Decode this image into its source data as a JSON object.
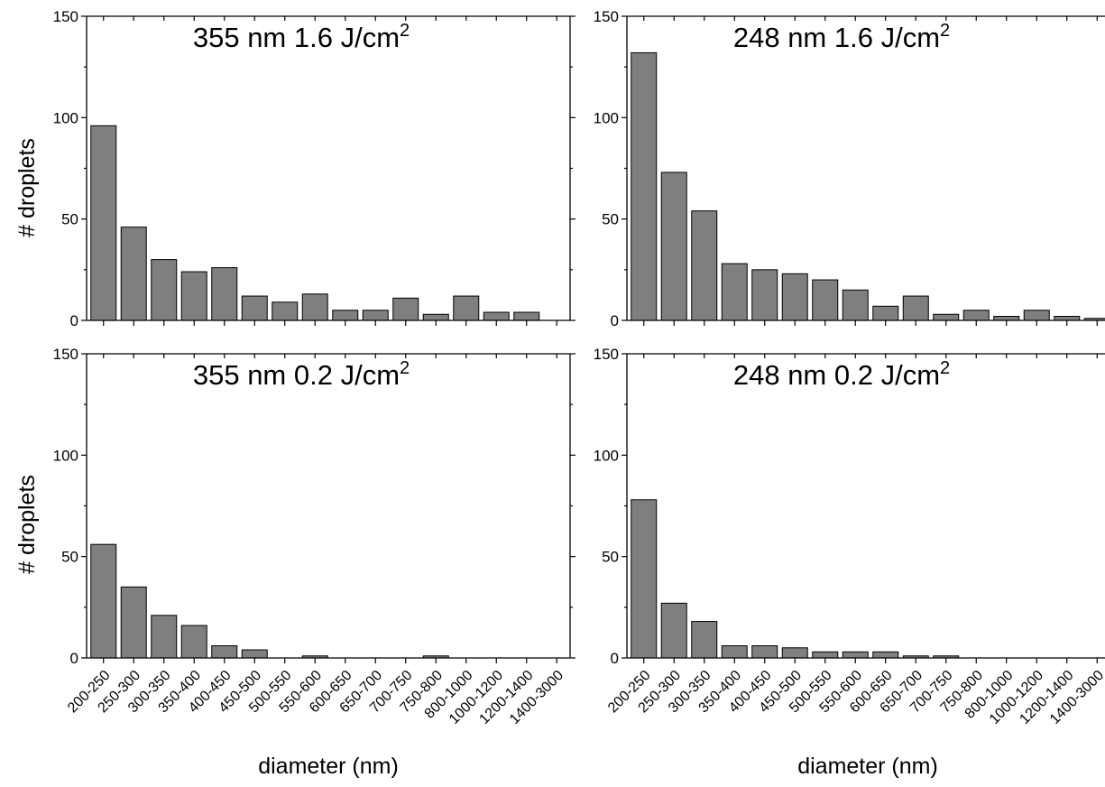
{
  "figure": {
    "ylabel": "# droplets",
    "xlabel": "diameter (nm)"
  },
  "chart_data": [
    {
      "type": "bar",
      "title_main": "355 nm 1.6 J/cm",
      "title_sup": "2",
      "categories": [
        "200-250",
        "250-300",
        "300-350",
        "350-400",
        "400-450",
        "450-500",
        "500-550",
        "550-600",
        "600-650",
        "650-700",
        "700-750",
        "750-800",
        "800-1000",
        "1000-1200",
        "1200-1400",
        "1400-3000"
      ],
      "values": [
        96,
        46,
        30,
        24,
        26,
        12,
        9,
        13,
        5,
        5,
        11,
        3,
        12,
        4,
        4,
        0
      ],
      "ylim": [
        0,
        150
      ],
      "yticks": [
        0,
        50,
        100,
        150
      ],
      "ylabel": "# droplets",
      "xlabel": "",
      "grid": false,
      "color": "#7f7f7f"
    },
    {
      "type": "bar",
      "title_main": "248 nm 1.6 J/cm",
      "title_sup": "2",
      "categories": [
        "200-250",
        "250-300",
        "300-350",
        "350-400",
        "400-450",
        "450-500",
        "500-550",
        "550-600",
        "600-650",
        "650-700",
        "700-750",
        "750-800",
        "800-1000",
        "1000-1200",
        "1200-1400",
        "1400-3000"
      ],
      "values": [
        132,
        73,
        54,
        28,
        25,
        23,
        20,
        15,
        7,
        12,
        3,
        5,
        2,
        5,
        2,
        1
      ],
      "ylim": [
        0,
        150
      ],
      "yticks": [
        0,
        50,
        100,
        150
      ],
      "ylabel": "",
      "xlabel": "",
      "grid": false,
      "color": "#7f7f7f"
    },
    {
      "type": "bar",
      "title_main": "355 nm 0.2 J/cm",
      "title_sup": "2",
      "categories": [
        "200-250",
        "250-300",
        "300-350",
        "350-400",
        "400-450",
        "450-500",
        "500-550",
        "550-600",
        "600-650",
        "650-700",
        "700-750",
        "750-800",
        "800-1000",
        "1000-1200",
        "1200-1400",
        "1400-3000"
      ],
      "values": [
        56,
        35,
        21,
        16,
        6,
        4,
        0,
        1,
        0,
        0,
        0,
        1,
        0,
        0,
        0,
        0
      ],
      "ylim": [
        0,
        150
      ],
      "yticks": [
        0,
        50,
        100,
        150
      ],
      "ylabel": "# droplets",
      "xlabel": "diameter (nm)",
      "grid": false,
      "color": "#7f7f7f"
    },
    {
      "type": "bar",
      "title_main": "248 nm 0.2 J/cm",
      "title_sup": "2",
      "categories": [
        "200-250",
        "250-300",
        "300-350",
        "350-400",
        "400-450",
        "450-500",
        "500-550",
        "550-600",
        "600-650",
        "650-700",
        "700-750",
        "750-800",
        "800-1000",
        "1000-1200",
        "1200-1400",
        "1400-3000"
      ],
      "values": [
        78,
        27,
        18,
        6,
        6,
        5,
        3,
        3,
        3,
        1,
        1,
        0,
        0,
        0,
        0,
        0
      ],
      "ylim": [
        0,
        150
      ],
      "yticks": [
        0,
        50,
        100,
        150
      ],
      "ylabel": "",
      "xlabel": "diameter (nm)",
      "grid": false,
      "color": "#7f7f7f"
    }
  ]
}
